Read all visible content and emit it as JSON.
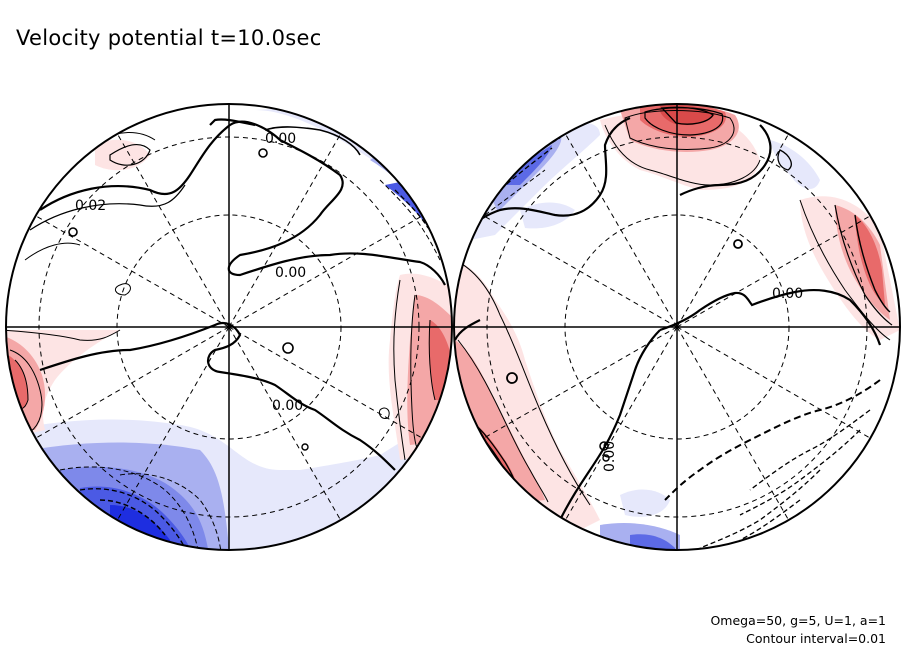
{
  "title": "Velocity potential t=10.0sec",
  "captions": {
    "parameters": "Omega=50, g=5, U=1, a=1",
    "contour": "Contour interval=0.01"
  },
  "colors": {
    "positive_light": "#fde4e4",
    "positive_mid": "#f4a7a7",
    "positive_strong": "#e86a6a",
    "negative_light": "#e6e8fb",
    "negative_mid": "#a9b0f0",
    "negative_strong": "#1e2ee0",
    "contour": "#000000",
    "grid": "#000000"
  },
  "map": {
    "projection": "orthographic",
    "hemispheres": [
      {
        "name": "left-hemisphere",
        "contour_labels": [
          "0.02",
          "0.00",
          "0.00",
          "0.00"
        ]
      },
      {
        "name": "right-hemisphere",
        "contour_labels": [
          "0.00",
          "0.00"
        ]
      }
    ]
  }
}
